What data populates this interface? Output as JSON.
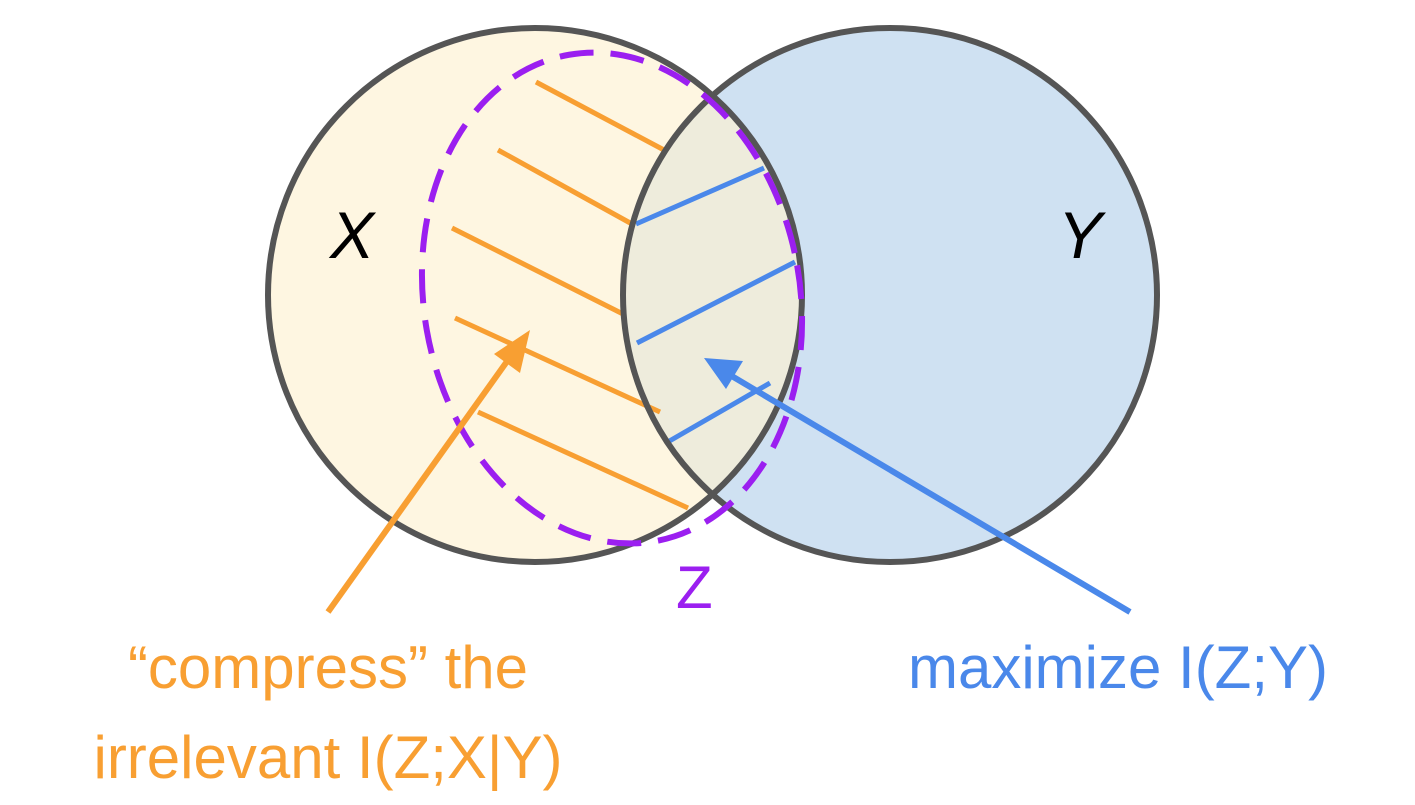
{
  "labels": {
    "x": "X",
    "y": "Y",
    "z": "Z"
  },
  "captions": {
    "compress_line1": "“compress” the",
    "compress_line2": "irrelevant I(Z;X|Y)",
    "maximize": "maximize I(Z;Y)"
  },
  "colors": {
    "x_fill": "#fef6e1",
    "y_fill": "#cfe1f2",
    "overlap_fill": "#eeecdc",
    "outline": "#555555",
    "z_boundary": "#9b1ff0",
    "compress": "#f89f32",
    "maximize": "#4a88ea"
  }
}
